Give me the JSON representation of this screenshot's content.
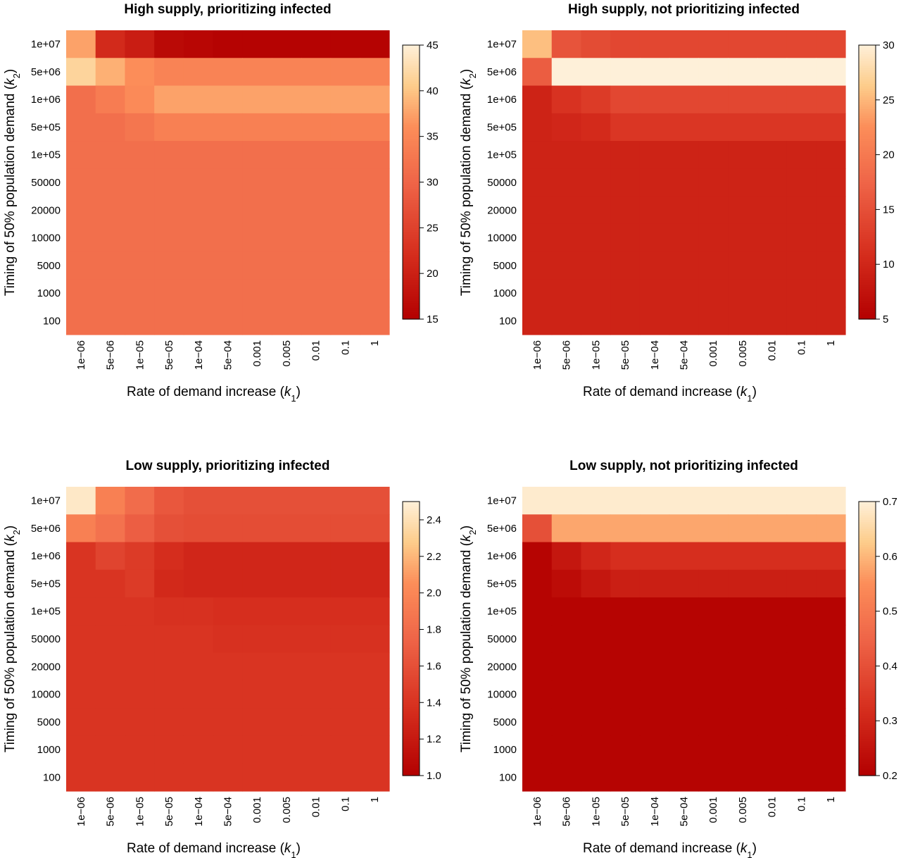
{
  "chart_data": [
    {
      "type": "heatmap",
      "title": "High supply, prioritizing infected",
      "xlabel": "Rate of demand increase (k1)",
      "ylabel": "Timing of 50% population demand (k2)",
      "x_categories": [
        "1e−06",
        "5e−06",
        "1e−05",
        "5e−05",
        "1e−04",
        "5e−04",
        "0.001",
        "0.005",
        "0.01",
        "0.1",
        "1"
      ],
      "y_categories": [
        "1e+07",
        "5e+06",
        "1e+06",
        "5e+05",
        "1e+05",
        "50000",
        "20000",
        "10000",
        "5000",
        "1000",
        "100"
      ],
      "color_range": [
        15,
        45
      ],
      "colorbar_ticks": [
        "15",
        "20",
        "25",
        "30",
        "35",
        "40",
        "45"
      ],
      "values": [
        [
          37.5,
          21.5,
          19.5,
          16.5,
          16.0,
          15.5,
          15.5,
          15.5,
          15.5,
          15.5,
          15.5
        ],
        [
          41.5,
          38.5,
          36.0,
          34.5,
          34.5,
          34.5,
          34.5,
          34.5,
          34.5,
          34.5,
          34.5
        ],
        [
          31.5,
          33.5,
          35.5,
          37.5,
          37.5,
          37.5,
          37.5,
          37.5,
          37.5,
          37.5,
          37.5
        ],
        [
          31.5,
          31.5,
          32.5,
          34.0,
          34.0,
          34.0,
          34.0,
          34.0,
          34.0,
          34.0,
          34.0
        ],
        [
          31.5,
          31.5,
          31.5,
          31.5,
          31.5,
          31.5,
          31.5,
          31.5,
          31.5,
          31.5,
          31.5
        ],
        [
          31.5,
          31.5,
          31.5,
          31.5,
          31.5,
          31.5,
          31.5,
          31.5,
          31.5,
          31.5,
          31.5
        ],
        [
          31.5,
          31.5,
          31.5,
          31.5,
          31.5,
          31.5,
          31.5,
          31.5,
          31.5,
          31.5,
          31.5
        ],
        [
          31.5,
          31.5,
          31.5,
          31.5,
          31.5,
          31.5,
          31.5,
          31.5,
          31.5,
          31.5,
          31.5
        ],
        [
          31.5,
          31.5,
          31.5,
          31.5,
          31.5,
          31.5,
          31.5,
          31.5,
          31.5,
          31.5,
          31.5
        ],
        [
          31.5,
          31.5,
          31.5,
          31.5,
          31.5,
          31.5,
          31.5,
          31.5,
          31.5,
          31.5,
          31.5
        ],
        [
          31.5,
          31.5,
          31.5,
          31.5,
          31.5,
          31.5,
          31.5,
          31.5,
          31.5,
          31.5,
          31.5
        ]
      ]
    },
    {
      "type": "heatmap",
      "title": "High supply, not prioritizing infected",
      "xlabel": "Rate of demand increase (k1)",
      "ylabel": "Timing of 50% population demand (k2)",
      "x_categories": [
        "1e−06",
        "5e−06",
        "1e−05",
        "5e−05",
        "1e−04",
        "5e−04",
        "0.001",
        "0.005",
        "0.01",
        "0.1",
        "1"
      ],
      "y_categories": [
        "1e+07",
        "5e+06",
        "1e+06",
        "5e+05",
        "1e+05",
        "50000",
        "20000",
        "10000",
        "5000",
        "1000",
        "100"
      ],
      "color_range": [
        5,
        30
      ],
      "colorbar_ticks": [
        "5",
        "10",
        "15",
        "20",
        "25",
        "30"
      ],
      "values": [
        [
          25.5,
          15.5,
          14.5,
          14.0,
          14.0,
          14.0,
          14.0,
          14.0,
          14.0,
          14.0,
          14.0
        ],
        [
          16.5,
          30.0,
          30.0,
          30.0,
          30.0,
          30.0,
          30.0,
          30.0,
          30.0,
          30.0,
          30.0
        ],
        [
          9.5,
          11.5,
          12.5,
          14.0,
          14.0,
          14.0,
          14.0,
          14.0,
          14.0,
          14.0,
          14.0
        ],
        [
          9.5,
          10.0,
          10.5,
          12.0,
          12.0,
          12.0,
          12.0,
          12.0,
          12.0,
          12.0,
          12.0
        ],
        [
          9.5,
          9.5,
          9.5,
          9.5,
          9.5,
          9.5,
          9.5,
          9.5,
          9.5,
          9.5,
          9.5
        ],
        [
          9.5,
          9.5,
          9.5,
          9.5,
          9.5,
          9.5,
          9.5,
          9.5,
          9.5,
          9.5,
          9.5
        ],
        [
          9.5,
          9.5,
          9.5,
          9.5,
          9.5,
          9.5,
          9.5,
          9.5,
          9.5,
          9.5,
          9.5
        ],
        [
          9.5,
          9.5,
          9.5,
          9.5,
          9.5,
          9.5,
          9.5,
          9.5,
          9.5,
          9.5,
          9.5
        ],
        [
          9.5,
          9.5,
          9.5,
          9.5,
          9.5,
          9.5,
          9.5,
          9.5,
          9.5,
          9.5,
          9.5
        ],
        [
          9.5,
          9.5,
          9.5,
          9.5,
          9.5,
          9.5,
          9.5,
          9.5,
          9.5,
          9.5,
          9.5
        ],
        [
          9.5,
          9.5,
          9.5,
          9.5,
          9.5,
          9.5,
          9.5,
          9.5,
          9.5,
          9.5,
          9.5
        ]
      ]
    },
    {
      "type": "heatmap",
      "title": "Low supply, prioritizing infected",
      "xlabel": "Rate of demand increase (k1)",
      "ylabel": "Timing of 50% population demand (k2)",
      "x_categories": [
        "1e−06",
        "5e−06",
        "1e−05",
        "5e−05",
        "1e−04",
        "5e−04",
        "0.001",
        "0.005",
        "0.01",
        "0.1",
        "1"
      ],
      "y_categories": [
        "1e+07",
        "5e+06",
        "1e+06",
        "5e+05",
        "1e+05",
        "50000",
        "20000",
        "10000",
        "5000",
        "1000",
        "100"
      ],
      "color_range": [
        1.0,
        2.5
      ],
      "colorbar_ticks": [
        "1.0",
        "1.2",
        "1.4",
        "1.6",
        "1.8",
        "2.0",
        "2.2",
        "2.4"
      ],
      "values": [
        [
          2.45,
          1.95,
          1.8,
          1.65,
          1.6,
          1.6,
          1.6,
          1.6,
          1.6,
          1.6,
          1.6
        ],
        [
          1.95,
          1.85,
          1.7,
          1.6,
          1.58,
          1.58,
          1.58,
          1.58,
          1.58,
          1.58,
          1.58
        ],
        [
          1.4,
          1.52,
          1.45,
          1.35,
          1.3,
          1.3,
          1.3,
          1.3,
          1.3,
          1.3,
          1.3
        ],
        [
          1.4,
          1.4,
          1.45,
          1.32,
          1.3,
          1.3,
          1.3,
          1.3,
          1.3,
          1.3,
          1.3
        ],
        [
          1.4,
          1.4,
          1.4,
          1.38,
          1.38,
          1.36,
          1.36,
          1.36,
          1.36,
          1.36,
          1.36
        ],
        [
          1.4,
          1.4,
          1.4,
          1.4,
          1.4,
          1.38,
          1.38,
          1.38,
          1.38,
          1.38,
          1.38
        ],
        [
          1.4,
          1.4,
          1.4,
          1.4,
          1.4,
          1.4,
          1.4,
          1.4,
          1.4,
          1.4,
          1.4
        ],
        [
          1.4,
          1.4,
          1.4,
          1.4,
          1.4,
          1.4,
          1.4,
          1.4,
          1.4,
          1.4,
          1.4
        ],
        [
          1.4,
          1.4,
          1.4,
          1.4,
          1.4,
          1.4,
          1.4,
          1.4,
          1.4,
          1.4,
          1.4
        ],
        [
          1.4,
          1.4,
          1.4,
          1.4,
          1.4,
          1.4,
          1.4,
          1.4,
          1.4,
          1.4,
          1.4
        ],
        [
          1.4,
          1.4,
          1.4,
          1.4,
          1.4,
          1.4,
          1.4,
          1.4,
          1.4,
          1.4,
          1.4
        ]
      ]
    },
    {
      "type": "heatmap",
      "title": "Low supply, not prioritizing infected",
      "xlabel": "Rate of demand increase (k1)",
      "ylabel": "Timing of 50% population demand (k2)",
      "x_categories": [
        "1e−06",
        "5e−06",
        "1e−05",
        "5e−05",
        "1e−04",
        "5e−04",
        "0.001",
        "0.005",
        "0.01",
        "0.1",
        "1"
      ],
      "y_categories": [
        "1e+07",
        "5e+06",
        "1e+06",
        "5e+05",
        "1e+05",
        "50000",
        "20000",
        "10000",
        "5000",
        "1000",
        "100"
      ],
      "color_range": [
        0.2,
        0.7
      ],
      "colorbar_ticks": [
        "0.2",
        "0.3",
        "0.4",
        "0.5",
        "0.6",
        "0.7"
      ],
      "values": [
        [
          0.69,
          0.69,
          0.69,
          0.69,
          0.69,
          0.69,
          0.69,
          0.69,
          0.69,
          0.69,
          0.69
        ],
        [
          0.4,
          0.58,
          0.58,
          0.58,
          0.58,
          0.58,
          0.58,
          0.58,
          0.58,
          0.58,
          0.58
        ],
        [
          0.21,
          0.26,
          0.3,
          0.32,
          0.32,
          0.32,
          0.32,
          0.32,
          0.32,
          0.32,
          0.32
        ],
        [
          0.21,
          0.23,
          0.26,
          0.28,
          0.28,
          0.28,
          0.28,
          0.28,
          0.28,
          0.28,
          0.28
        ],
        [
          0.21,
          0.21,
          0.21,
          0.21,
          0.21,
          0.21,
          0.21,
          0.21,
          0.21,
          0.21,
          0.21
        ],
        [
          0.21,
          0.21,
          0.21,
          0.21,
          0.21,
          0.21,
          0.21,
          0.21,
          0.21,
          0.21,
          0.21
        ],
        [
          0.21,
          0.21,
          0.21,
          0.21,
          0.21,
          0.21,
          0.21,
          0.21,
          0.21,
          0.21,
          0.21
        ],
        [
          0.21,
          0.21,
          0.21,
          0.21,
          0.21,
          0.21,
          0.21,
          0.21,
          0.21,
          0.21,
          0.21
        ],
        [
          0.21,
          0.21,
          0.21,
          0.21,
          0.21,
          0.21,
          0.21,
          0.21,
          0.21,
          0.21,
          0.21
        ],
        [
          0.21,
          0.21,
          0.21,
          0.21,
          0.21,
          0.21,
          0.21,
          0.21,
          0.21,
          0.21,
          0.21
        ],
        [
          0.21,
          0.21,
          0.21,
          0.21,
          0.21,
          0.21,
          0.21,
          0.21,
          0.21,
          0.21,
          0.21
        ]
      ]
    }
  ]
}
